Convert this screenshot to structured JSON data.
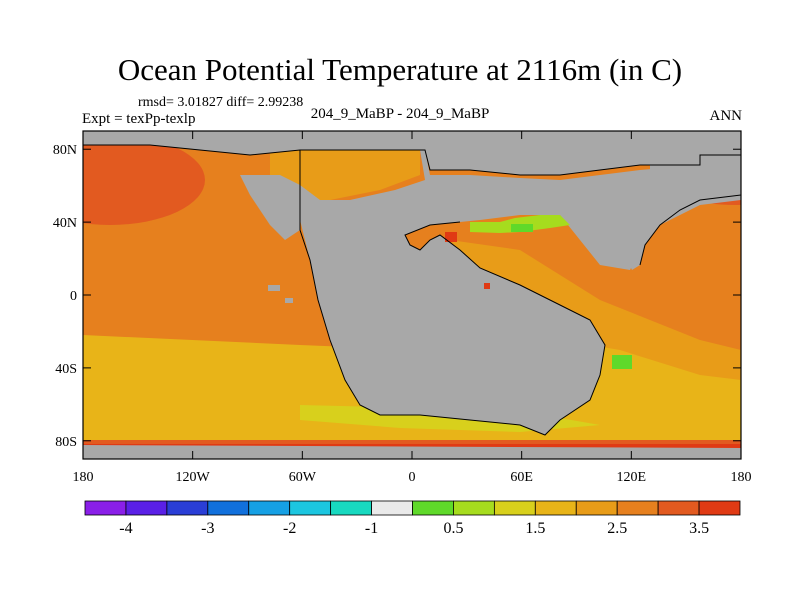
{
  "title": "Ocean Potential Temperature at 2116m (in C)",
  "stats_text": "rmsd= 3.01827 diff= 2.99238",
  "experiment_text": "Expt = texPp-texlp",
  "case_text": "204_9_MaBP - 204_9_MaBP",
  "season_text": "ANN",
  "y_ticks": [
    "80N",
    "40N",
    "0",
    "40S",
    "80S"
  ],
  "x_ticks": [
    "180",
    "120W",
    "60W",
    "0",
    "60E",
    "120E",
    "180"
  ],
  "colorbar": {
    "colors": [
      "#8a1fe8",
      "#5a20e6",
      "#2a3ed6",
      "#1170dc",
      "#16a0e4",
      "#1cc6e0",
      "#18d9c0",
      "#eaeaea",
      "#5fd92a",
      "#a6dc1e",
      "#d8d01c",
      "#e8b418",
      "#e89c18",
      "#e6801e",
      "#e25a20",
      "#e03a14"
    ],
    "labels": [
      "-4",
      "-3",
      "-2",
      "-1",
      "0.5",
      "1.5",
      "2.5",
      "3.5"
    ]
  },
  "map_colors": {
    "land": "#a8a8a8",
    "ocean_main": "#e6801e",
    "ocean_warm": "#e25a20",
    "ocean_cool": "#e89c18",
    "ocean_south": "#e8b418",
    "ocean_southmost": "#d8d01c",
    "green_basin": "#a6dc1e",
    "green_spot": "#5fd92a",
    "red_spot": "#e03a14"
  }
}
